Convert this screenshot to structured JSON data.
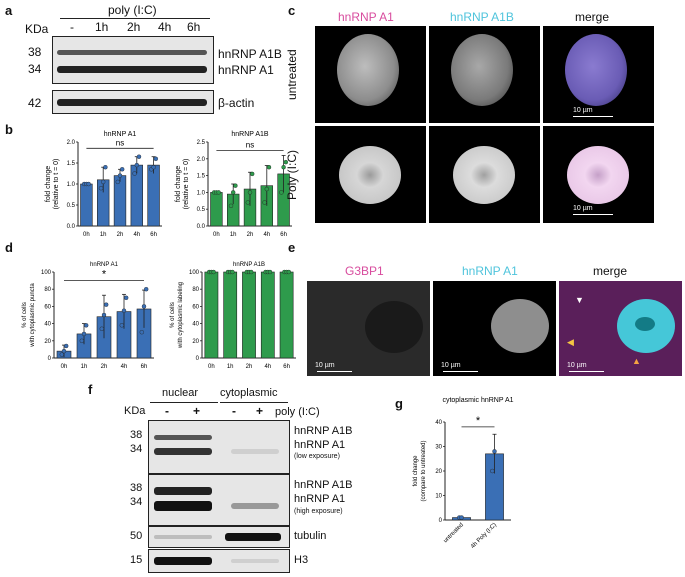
{
  "panel_letters": {
    "a": "a",
    "b": "b",
    "c": "c",
    "d": "d",
    "e": "e",
    "f": "f",
    "g": "g"
  },
  "panel_a": {
    "treatment": "poly (I:C)",
    "kda_label": "KDa",
    "lanes": [
      "-",
      "1h",
      "2h",
      "4h",
      "6h"
    ],
    "mw_markers": [
      "38",
      "34",
      "42"
    ],
    "protein_labels": [
      "hnRNP A1B",
      "hnRNP A1",
      "β-actin"
    ]
  },
  "panel_b": {
    "left_title": "hnRNP A1",
    "right_title": "hnRNP A1B",
    "sig": "ns",
    "ylabel_line1": "fold change",
    "ylabel_line2": "(relative to t = 0)",
    "colors": {
      "a1": "#3a6fb5",
      "a1b": "#2e9b4c"
    }
  },
  "panel_c": {
    "col_titles": [
      "hnRNP A1",
      "hnRNP A1B",
      "merge"
    ],
    "row_titles": [
      "untreated",
      "Poly (I:C)"
    ],
    "scale": "10 µm",
    "colors": {
      "a1_title": "#d84c9e",
      "a1b_title": "#4fc4dc"
    }
  },
  "panel_d": {
    "left_title": "hnRNP A1",
    "right_title": "hnRNP A1B",
    "sig": "*",
    "left_ylabel_line1": "% of cells",
    "left_ylabel_line2": "with cytoplasmic puncta",
    "right_ylabel_line1": "% of cells",
    "right_ylabel_line2": "with cytoplasmic labeling"
  },
  "panel_e": {
    "col_titles": [
      "G3BP1",
      "hnRNP A1",
      "merge"
    ],
    "scale": "10 µm",
    "colors": {
      "g3bp1_title": "#d84c9e",
      "a1_title": "#4fc4dc"
    }
  },
  "panel_f": {
    "groups": [
      "nuclear",
      "cytoplasmic"
    ],
    "kda_label": "KDa",
    "lanes": [
      "-",
      "+",
      "-",
      "+"
    ],
    "treatment": "poly (I:C)",
    "mw_markers": [
      "38",
      "34",
      "38",
      "34",
      "50",
      "15"
    ],
    "labels": {
      "a1b": "hnRNP A1B",
      "a1": "hnRNP A1",
      "low": "(low exposure)",
      "high": "(high exposure)",
      "tubulin": "tubulin",
      "h3": "H3"
    }
  },
  "panel_g": {
    "title": "cytoplasmic hnRNP A1",
    "sig": "*",
    "ylabel_line1": "fold change",
    "ylabel_line2": "(compare to untreated)"
  },
  "chart_data": [
    {
      "type": "bar",
      "title": "hnRNP A1",
      "categories": [
        "0h",
        "1h",
        "2h",
        "4h",
        "6h"
      ],
      "values": [
        1.0,
        1.1,
        1.2,
        1.45,
        1.45
      ],
      "error": [
        0.02,
        0.3,
        0.15,
        0.2,
        0.2
      ],
      "points": [
        [
          1.0,
          1.0,
          1.0
        ],
        [
          0.9,
          1.05,
          1.4
        ],
        [
          1.05,
          1.2,
          1.35
        ],
        [
          1.25,
          1.45,
          1.65
        ],
        [
          1.35,
          1.4,
          1.6
        ]
      ],
      "ylabel": "fold change (relative to t = 0)",
      "ylim": [
        0,
        2.0
      ],
      "yticks": [
        0.0,
        0.5,
        1.0,
        1.5,
        2.0
      ],
      "color": "#3a6fb5"
    },
    {
      "type": "bar",
      "title": "hnRNP A1B",
      "categories": [
        "0h",
        "1h",
        "2h",
        "4h",
        "6h"
      ],
      "values": [
        1.0,
        0.95,
        1.1,
        1.2,
        1.55
      ],
      "error": [
        0.02,
        0.3,
        0.5,
        0.6,
        0.55
      ],
      "points": [
        [
          1.0,
          1.0,
          1.0
        ],
        [
          0.6,
          1.0,
          1.2
        ],
        [
          0.7,
          1.0,
          1.55
        ],
        [
          0.7,
          1.1,
          1.75
        ],
        [
          1.0,
          1.75,
          1.9
        ]
      ],
      "ylabel": "fold change (relative to t = 0)",
      "ylim": [
        0,
        2.5
      ],
      "yticks": [
        0.0,
        0.5,
        1.0,
        1.5,
        2.0,
        2.5
      ],
      "color": "#2e9b4c"
    },
    {
      "type": "bar",
      "title": "hnRNP A1",
      "categories": [
        "0h",
        "1h",
        "2h",
        "4h",
        "6h"
      ],
      "values": [
        8,
        28,
        48,
        54,
        57
      ],
      "error": [
        7,
        12,
        25,
        20,
        22
      ],
      "points": [
        [
          4,
          8,
          14
        ],
        [
          20,
          28,
          38
        ],
        [
          34,
          50,
          62
        ],
        [
          38,
          55,
          70
        ],
        [
          30,
          60,
          80
        ]
      ],
      "ylabel": "% of cells with cytoplasmic puncta",
      "ylim": [
        0,
        100
      ],
      "yticks": [
        0,
        20,
        40,
        60,
        80,
        100
      ],
      "color": "#3a6fb5"
    },
    {
      "type": "bar",
      "title": "hnRNP A1B",
      "categories": [
        "0h",
        "1h",
        "2h",
        "4h",
        "6h"
      ],
      "values": [
        100,
        100,
        100,
        100,
        100
      ],
      "error": [
        0,
        0,
        0,
        0,
        0
      ],
      "points": [
        [
          100,
          100,
          100
        ],
        [
          100,
          100,
          100
        ],
        [
          100,
          100,
          100
        ],
        [
          100,
          100,
          100
        ],
        [
          100,
          100,
          100
        ]
      ],
      "ylabel": "% of cells with cytoplasmic labeling",
      "ylim": [
        0,
        100
      ],
      "yticks": [
        0,
        20,
        40,
        60,
        80,
        100
      ],
      "color": "#2e9b4c"
    },
    {
      "type": "bar",
      "title": "cytoplasmic hnRNP A1",
      "categories": [
        "untreated",
        "4h Poly (I:C)"
      ],
      "values": [
        1,
        27
      ],
      "error": [
        0.5,
        8
      ],
      "points": [
        [
          1,
          1
        ],
        [
          20,
          28
        ]
      ],
      "ylabel": "fold change (compare to untreated)",
      "ylim": [
        0,
        40
      ],
      "yticks": [
        0,
        10,
        20,
        30,
        40
      ],
      "color": "#3a6fb5"
    }
  ]
}
